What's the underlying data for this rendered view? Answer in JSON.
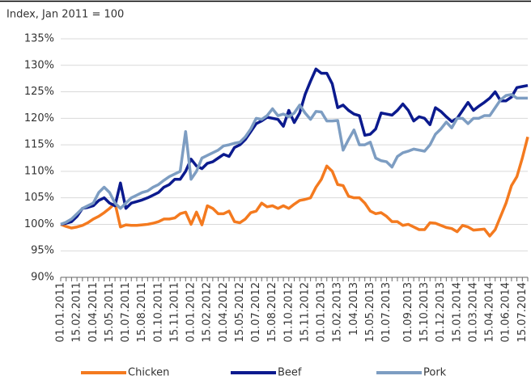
{
  "chart_data": {
    "type": "line",
    "y_label": "Index, Jan 2011 = 100",
    "categories": [
      "01.01.2011",
      null,
      null,
      "15.02.2011",
      null,
      null,
      "01.04.2011",
      null,
      null,
      "15.05.2011",
      null,
      null,
      "01.07.2011",
      null,
      null,
      "15.08.2011",
      null,
      null,
      "01.10.2011",
      null,
      null,
      "15.11.2011",
      null,
      null,
      "01.01.2012",
      null,
      null,
      "15.02.2012",
      null,
      null,
      "01.04.2012",
      null,
      null,
      "15.05.2012",
      null,
      null,
      "01.07.2012",
      null,
      null,
      "15.08.2012",
      null,
      null,
      "01.10.2012",
      null,
      null,
      "15.11.2012",
      null,
      null,
      "01.01.2013",
      null,
      null,
      "15.02.2013",
      null,
      null,
      "1.04.2013",
      null,
      null,
      "15.05.2013",
      null,
      null,
      "01.07.2013",
      null,
      null,
      null,
      "01.09.2013",
      null,
      null,
      "15.10.2013",
      null,
      null,
      "01.12.2013",
      null,
      null,
      "15.01.2014",
      null,
      null,
      "01.03.2014",
      null,
      null,
      "15.04.2014",
      null,
      null,
      "01.06.2014",
      null,
      null,
      "15.07.2014",
      null
    ],
    "series": [
      {
        "name": "Chicken",
        "color": "#f47a1f",
        "values": [
          100,
          99.6,
          99.3,
          99.5,
          99.8,
          100.3,
          101,
          101.5,
          102.2,
          103,
          104,
          99.5,
          99.9,
          99.8,
          99.8,
          99.9,
          100,
          100.2,
          100.5,
          101,
          101,
          101.2,
          102,
          102.3,
          100,
          102.3,
          99.9,
          103.5,
          103,
          102,
          102,
          102.5,
          100.5,
          100.3,
          101,
          102.2,
          102.5,
          104,
          103.3,
          103.5,
          103,
          103.5,
          103,
          103.8,
          104.5,
          104.7,
          105,
          107,
          108.5,
          111,
          110,
          107.5,
          107.3,
          105.3,
          105,
          105,
          104,
          102.5,
          102,
          102.2,
          101.5,
          100.5,
          100.5,
          99.8,
          100,
          99.5,
          99,
          99,
          100.3,
          100.2,
          99.8,
          99.4,
          99.2,
          98.6,
          99.8,
          99.5,
          98.9,
          99,
          99.1,
          97.8,
          99,
          101.5,
          104,
          107.3,
          109,
          112.5,
          116.5
        ]
      },
      {
        "name": "Beef",
        "color": "#0b1a8e",
        "values": [
          100,
          100.2,
          100.5,
          101.5,
          103,
          103.2,
          103.5,
          104.5,
          105,
          104,
          103.5,
          107.8,
          103,
          104,
          104.3,
          104.6,
          105,
          105.5,
          106,
          107,
          107.5,
          108.5,
          108.5,
          110,
          112.3,
          111,
          110.5,
          111.5,
          111.8,
          112.5,
          113.2,
          112.8,
          114.5,
          115,
          116,
          117.5,
          119,
          119.5,
          120.2,
          120,
          119.8,
          118.5,
          121.5,
          119.2,
          121,
          124.5,
          127,
          129.3,
          128.5,
          128.5,
          126.5,
          122,
          122.5,
          121.5,
          120.8,
          120.5,
          116.8,
          117,
          118,
          121,
          120.8,
          120.6,
          121.5,
          122.7,
          121.5,
          119.5,
          120.3,
          120,
          118.8,
          122,
          121.3,
          120.3,
          119.4,
          120,
          121.5,
          123,
          121.5,
          122.3,
          123,
          123.8,
          125,
          123.3,
          123.3,
          124,
          125.8,
          126,
          126.2
        ]
      },
      {
        "name": "Pork",
        "color": "#7d9dc2",
        "values": [
          100,
          100.4,
          101,
          102,
          103,
          103.5,
          104,
          106,
          107,
          106,
          104,
          103,
          104,
          105,
          105.5,
          106,
          106.3,
          107,
          107.5,
          108.3,
          109,
          109.5,
          110,
          117.5,
          108.5,
          110,
          112.5,
          113,
          113.5,
          114,
          114.8,
          115,
          115.3,
          115.5,
          116.5,
          118,
          120,
          119.8,
          120.5,
          121.8,
          120.5,
          120.8,
          120.3,
          121,
          122.5,
          121,
          119.8,
          121.3,
          121.2,
          119.5,
          119.5,
          119.6,
          114,
          116,
          117.8,
          115,
          115,
          115.5,
          112.5,
          112,
          111.8,
          110.8,
          112.8,
          113.5,
          113.8,
          114.2,
          114,
          113.8,
          115,
          117,
          118,
          119.3,
          118.2,
          120,
          120,
          119,
          120,
          120,
          120.5,
          120.5,
          122,
          123.5,
          124.3,
          124.5,
          123.8,
          123.8,
          123.8
        ]
      }
    ],
    "ylim": [
      90,
      135
    ],
    "yticks": [
      {
        "value": 90,
        "label": "90%"
      },
      {
        "value": 95,
        "label": "95%"
      },
      {
        "value": 100,
        "label": "100%"
      },
      {
        "value": 105,
        "label": "105%"
      },
      {
        "value": 110,
        "label": "110%"
      },
      {
        "value": 115,
        "label": "115%"
      },
      {
        "value": 120,
        "label": "120%"
      },
      {
        "value": 125,
        "label": "125%"
      },
      {
        "value": 130,
        "label": "130%"
      },
      {
        "value": 135,
        "label": "135%"
      }
    ],
    "grid": true,
    "legend": "bottom"
  }
}
